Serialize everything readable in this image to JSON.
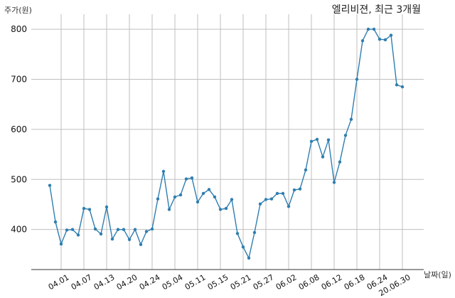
{
  "chart_data": {
    "type": "line",
    "title": "엘리비젼, 최근 3개월",
    "xlabel": "날짜(일)",
    "ylabel": "주가(원)",
    "ylim": [
      320,
      830
    ],
    "yticks": [
      400,
      500,
      600,
      700,
      800
    ],
    "grid": true,
    "xticks": [
      "04.01",
      "04.07",
      "04.13",
      "04.20",
      "04.24",
      "05.04",
      "05.11",
      "05.15",
      "05.21",
      "05.27",
      "06.02",
      "06.08",
      "06.12",
      "06.18",
      "06.24",
      "20.06.30"
    ],
    "series": [
      {
        "values": [
          488,
          415,
          371,
          399,
          400,
          389,
          442,
          440,
          401,
          391,
          445,
          381,
          400,
          400,
          380,
          400,
          370,
          396,
          401,
          461,
          516,
          440,
          465,
          469,
          501,
          503,
          455,
          472,
          480,
          465,
          440,
          442,
          460,
          392,
          365,
          343,
          394,
          451,
          460,
          461,
          472,
          472,
          446,
          479,
          481,
          519,
          576,
          580,
          545,
          579,
          494,
          535,
          588,
          620,
          700,
          777,
          800,
          800,
          780,
          779,
          788,
          689,
          685
        ]
      }
    ],
    "colors": {
      "line": "#2f7eb0"
    }
  }
}
